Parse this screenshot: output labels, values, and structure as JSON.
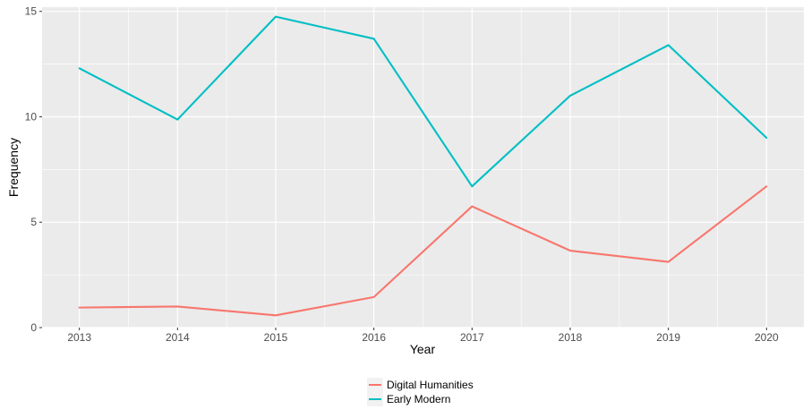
{
  "chart_data": {
    "type": "line",
    "title": "",
    "xlabel": "Year",
    "ylabel": "Frequency",
    "x": [
      2013,
      2014,
      2015,
      2016,
      2017,
      2018,
      2019,
      2020
    ],
    "xlim": [
      2012.62,
      2020.38
    ],
    "ylim": [
      0,
      15.2
    ],
    "y_ticks": [
      0,
      5,
      10,
      15
    ],
    "grid": true,
    "legend_position": "bottom",
    "series": [
      {
        "name": "Digital Humanities",
        "color": "#F8766D",
        "values": [
          0.95,
          1.0,
          0.58,
          1.45,
          5.75,
          3.65,
          3.12,
          6.7
        ]
      },
      {
        "name": "Early Modern",
        "color": "#00BFC4",
        "values": [
          12.3,
          9.87,
          14.75,
          13.7,
          6.7,
          11.0,
          13.4,
          9.0
        ]
      }
    ]
  }
}
